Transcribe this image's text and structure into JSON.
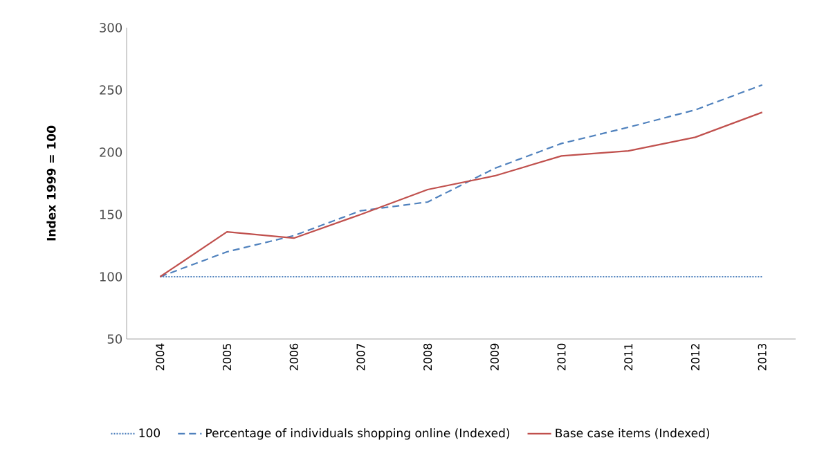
{
  "chart_data": {
    "type": "line",
    "ylabel": "Index 1999 = 100",
    "categories": [
      "2004",
      "2005",
      "2006",
      "2007",
      "2008",
      "2009",
      "2010",
      "2011",
      "2012",
      "2013"
    ],
    "series": [
      {
        "name": "100",
        "color": "#4f81bd",
        "line_style": "dotted",
        "values": [
          100,
          100,
          100,
          100,
          100,
          100,
          100,
          100,
          100,
          100
        ]
      },
      {
        "name": "Percentage of individuals shopping online (Indexed)",
        "color": "#4f81bd",
        "line_style": "dashed",
        "values": [
          100,
          120,
          133,
          153,
          160,
          187,
          207,
          220,
          234,
          254
        ]
      },
      {
        "name": "Base case items (Indexed)",
        "color": "#c0504d",
        "line_style": "solid",
        "values": [
          100,
          136,
          131,
          150,
          170,
          181,
          197,
          201,
          212,
          232
        ]
      }
    ],
    "ylim": [
      50,
      300
    ],
    "yticks": [
      50,
      100,
      150,
      200,
      250,
      300
    ],
    "grid": false,
    "legend": "bottom",
    "marker": "none"
  }
}
